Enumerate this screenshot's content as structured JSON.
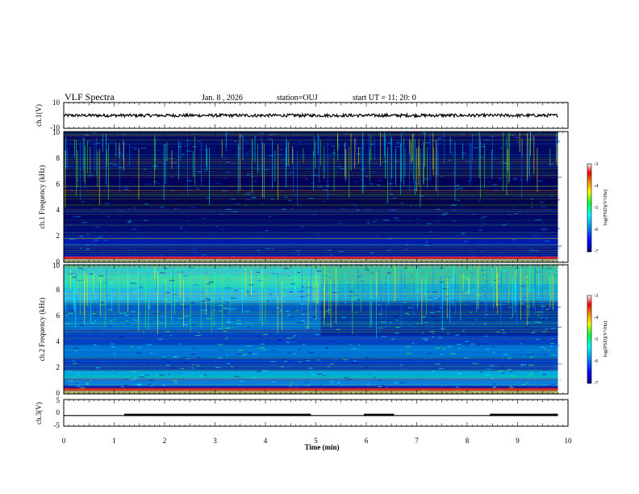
{
  "header": {
    "title": "VLF Spectra",
    "date": "Jan. 8 , 2026",
    "station": "station=OUJ",
    "start": "start UT = 11: 20: 0"
  },
  "chart_data": {
    "type": "heatmap",
    "x_axis": {
      "label": "Time (min)",
      "range": [
        0,
        10
      ],
      "ticks": [
        "0",
        "1",
        "2",
        "3",
        "4",
        "5",
        "6",
        "7",
        "8",
        "9",
        "10"
      ]
    },
    "panels": [
      {
        "id": "ch1-waveform",
        "type": "line",
        "ylabel": "ch.1(V)",
        "ylim": [
          -10,
          10
        ],
        "yticks": [
          "10",
          "-10"
        ],
        "trace_level": 0,
        "trace_end_min": 9.8
      },
      {
        "id": "ch1-spectrogram",
        "type": "heatmap",
        "ylabel": "ch.1 Frequency (kHz)",
        "ylim": [
          0,
          10
        ],
        "yticks": [
          "0",
          "2",
          "4",
          "6",
          "8",
          "10"
        ],
        "colorbar": {
          "label": "log(PSD)(V²/Hz)",
          "range": [
            -7,
            -3
          ],
          "ticks": [
            "-3",
            "-4",
            "-5",
            "-6",
            "-7"
          ]
        },
        "data_end_min": 9.8
      },
      {
        "id": "ch2-spectrogram",
        "type": "heatmap",
        "ylabel": "ch.2 Frequency (kHz)",
        "ylim": [
          0,
          10
        ],
        "yticks": [
          "0",
          "2",
          "4",
          "6",
          "8",
          "10"
        ],
        "colorbar": {
          "label": "log(PSD)(V²/Hz)",
          "range": [
            -7,
            -3
          ],
          "ticks": [
            "-3",
            "-4",
            "-5",
            "-6",
            "-7"
          ]
        },
        "data_end_min": 9.8
      },
      {
        "id": "ch3-signal",
        "type": "line",
        "ylabel": "ch.3(V)",
        "ylim": [
          -5,
          5
        ],
        "yticks": [
          "5",
          "0",
          "-5"
        ],
        "baseline": -1,
        "on_intervals": [
          [
            1.2,
            4.9
          ],
          [
            5.95,
            6.55
          ],
          [
            8.45,
            9.8
          ]
        ]
      }
    ]
  }
}
